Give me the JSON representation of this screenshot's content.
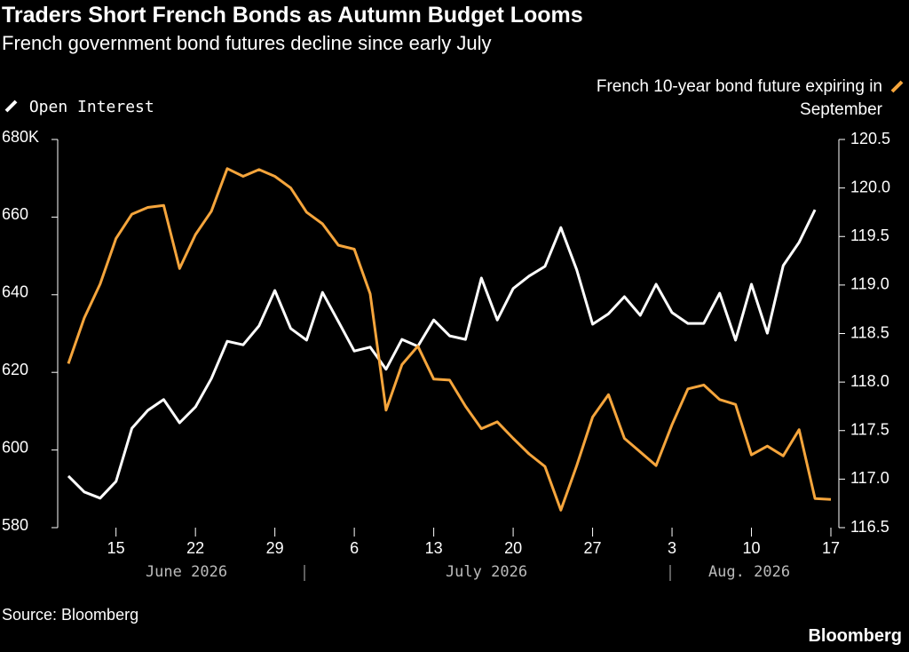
{
  "chart_data": {
    "type": "line",
    "title": "Traders Short French Bonds as Autumn Budget Looms",
    "subtitle": "French government bond futures decline since early July",
    "source": "Source: Bloomberg",
    "brand": "Bloomberg",
    "x": [
      "2026-06-10",
      "2026-06-11",
      "2026-06-12",
      "2026-06-15",
      "2026-06-16",
      "2026-06-17",
      "2026-06-18",
      "2026-06-19",
      "2026-06-22",
      "2026-06-23",
      "2026-06-24",
      "2026-06-25",
      "2026-06-26",
      "2026-06-29",
      "2026-06-30",
      "2026-07-01",
      "2026-07-02",
      "2026-07-03",
      "2026-07-06",
      "2026-07-07",
      "2026-07-08",
      "2026-07-09",
      "2026-07-10",
      "2026-07-13",
      "2026-07-14",
      "2026-07-15",
      "2026-07-16",
      "2026-07-17",
      "2026-07-20",
      "2026-07-21",
      "2026-07-22",
      "2026-07-23",
      "2026-07-24",
      "2026-07-27",
      "2026-07-28",
      "2026-07-29",
      "2026-07-30",
      "2026-07-31",
      "2026-08-03",
      "2026-08-04",
      "2026-08-05",
      "2026-08-06",
      "2026-08-07",
      "2026-08-10",
      "2026-08-11",
      "2026-08-12",
      "2026-08-13",
      "2026-08-14",
      "2026-08-17"
    ],
    "xticks": [
      {
        "value": "2026-06-15",
        "label": "15"
      },
      {
        "value": "2026-06-22",
        "label": "22"
      },
      {
        "value": "2026-06-29",
        "label": "29"
      },
      {
        "value": "2026-07-06",
        "label": "6"
      },
      {
        "value": "2026-07-13",
        "label": "13"
      },
      {
        "value": "2026-07-20",
        "label": "20"
      },
      {
        "value": "2026-07-27",
        "label": "27"
      },
      {
        "value": "2026-08-03",
        "label": "3"
      },
      {
        "value": "2026-08-10",
        "label": "10"
      },
      {
        "value": "2026-08-17",
        "label": "17"
      }
    ],
    "month_labels": [
      "June 2026",
      "July 2026",
      "Aug. 2026"
    ],
    "series": [
      {
        "name": "Open Interest",
        "color": "#ffffff",
        "axis": "y",
        "values": [
          593.3,
          589.2,
          587.6,
          591.9,
          605.6,
          610.2,
          613,
          607,
          611.1,
          618.4,
          628,
          627.1,
          632,
          641.1,
          631.3,
          628.3,
          640.6,
          633.1,
          625.5,
          626.5,
          620.8,
          628.5,
          626.7,
          633.5,
          629.4,
          628.5,
          644.3,
          633.5,
          641.6,
          644.8,
          647.3,
          657.3,
          646.4,
          632.4,
          635.1,
          639.5,
          634.7,
          642.7,
          635.4,
          632.6,
          632.6,
          640.4,
          628.3,
          642.7,
          630.1,
          647.5,
          653.5,
          661.9,
          null
        ]
      },
      {
        "name": "French 10-year bond future expiring in September",
        "color": "#f5a53c",
        "axis": "y2",
        "values": [
          118.19,
          118.66,
          119.01,
          119.48,
          119.73,
          119.8,
          119.82,
          119.17,
          119.52,
          119.76,
          120.2,
          120.12,
          120.19,
          120.12,
          120.0,
          119.75,
          119.63,
          119.41,
          119.37,
          118.91,
          117.71,
          118.18,
          118.37,
          118.03,
          118.02,
          117.75,
          117.52,
          117.59,
          117.42,
          117.26,
          117.13,
          116.68,
          117.14,
          117.64,
          117.87,
          117.42,
          117.28,
          117.14,
          117.56,
          117.93,
          117.97,
          117.82,
          117.77,
          117.25,
          117.34,
          117.24,
          117.51,
          116.8,
          116.79
        ]
      }
    ],
    "ylim": [
      580,
      680
    ],
    "yticks": [
      580,
      600,
      620,
      640,
      660,
      {
        "value": 680,
        "label": "680K"
      }
    ],
    "y2lim": [
      116.5,
      120.5
    ],
    "y2ticks": [
      {
        "value": 116.5,
        "label": "116.5"
      },
      {
        "value": 117,
        "label": "117.0"
      },
      {
        "value": 117.5,
        "label": "117.5"
      },
      {
        "value": 118,
        "label": "118.0"
      },
      {
        "value": 118.5,
        "label": "118.5"
      },
      {
        "value": 119,
        "label": "119.0"
      },
      {
        "value": 119.5,
        "label": "119.5"
      },
      {
        "value": 120,
        "label": "120.0"
      },
      {
        "value": 120.5,
        "label": "120.5"
      }
    ],
    "grid": false
  }
}
